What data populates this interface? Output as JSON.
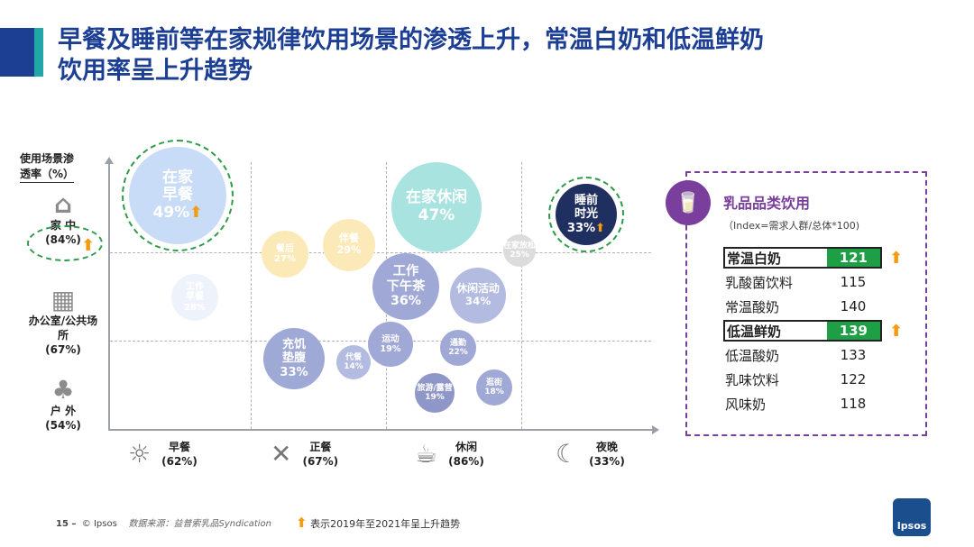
{
  "title_line1": "早餐及睡前等在家规律饮用场景的渗透上升，常温白奶和低温鲜奶",
  "title_line2": "饮用率呈上升趋势",
  "chart_data": {
    "type": "scatter",
    "title": "早餐及睡前等在家规律饮用场景的渗透上升，常温白奶和低温鲜奶饮用率呈上升趋势",
    "ylabel_line1": "使用场景渗",
    "ylabel_line2": "透率（%）",
    "y_categories": [
      {
        "icon": "house-icon",
        "name": "家 中",
        "value": "(84%)",
        "trend": "up"
      },
      {
        "icon": "office-icon",
        "name": "办公室/公共场",
        "name2": "所",
        "value": "(67%)"
      },
      {
        "icon": "tree-icon",
        "name": "户 外",
        "value": "(54%)"
      }
    ],
    "x_categories": [
      {
        "icon": "sun-icon",
        "name": "早餐",
        "value": "(62%)"
      },
      {
        "icon": "fork-knife-icon",
        "name": "正餐",
        "value": "(67%)"
      },
      {
        "icon": "coffee-icon",
        "name": "休闲",
        "value": "(86%)"
      },
      {
        "icon": "moon-icon",
        "name": "夜晚",
        "value": "(33%)"
      }
    ],
    "bubbles": [
      {
        "name": "在家早餐",
        "label1": "在家",
        "label2": "早餐",
        "value": 49,
        "pct": "49%",
        "location": "家中",
        "time": "早餐",
        "trend": "up",
        "highlight": true,
        "color": "#c9dcf7"
      },
      {
        "name": "工作早餐",
        "label1": "工作",
        "label2": "早餐",
        "value": 28,
        "pct": "28%",
        "location": "办公室/公共场所",
        "time": "早餐",
        "color": "#eef3fb"
      },
      {
        "name": "餐后",
        "label1": "餐后",
        "label2": "",
        "value": 27,
        "pct": "27%",
        "location": "家中",
        "time": "正餐",
        "color": "#fbe9b7"
      },
      {
        "name": "伴餐",
        "label1": "伴餐",
        "label2": "",
        "value": 29,
        "pct": "29%",
        "location": "家中",
        "time": "正餐",
        "color": "#fbe9b7"
      },
      {
        "name": "充饥垫腹",
        "label1": "充饥",
        "label2": "垫腹",
        "value": 33,
        "pct": "33%",
        "location": "户外",
        "time": "正餐",
        "color": "#9fa9d6"
      },
      {
        "name": "代餐",
        "label1": "代餐",
        "label2": "",
        "value": 14,
        "pct": "14%",
        "location": "户外",
        "time": "正餐",
        "color": "#b3bbe0"
      },
      {
        "name": "在家休闲",
        "label1": "在家休闲",
        "label2": "",
        "value": 47,
        "pct": "47%",
        "location": "家中",
        "time": "休闲",
        "color": "#a8e3e0"
      },
      {
        "name": "工作下午茶",
        "label1": "工作",
        "label2": "下午茶",
        "value": 36,
        "pct": "36%",
        "location": "办公室/公共场所",
        "time": "休闲",
        "color": "#a0a9d6"
      },
      {
        "name": "休闲活动",
        "label1": "休闲活动",
        "label2": "",
        "value": 34,
        "pct": "34%",
        "location": "办公室/公共场所",
        "time": "休闲",
        "color": "#b3bbe0"
      },
      {
        "name": "运动",
        "label1": "运动",
        "label2": "",
        "value": 19,
        "pct": "19%",
        "location": "户外",
        "time": "休闲",
        "color": "#a0a9d6"
      },
      {
        "name": "通勤",
        "label1": "通勤",
        "label2": "",
        "value": 22,
        "pct": "22%",
        "location": "户外",
        "time": "休闲",
        "color": "#a0a9d6"
      },
      {
        "name": "旅游/露营",
        "label1": "旅游/露营",
        "label2": "",
        "value": 19,
        "pct": "19%",
        "location": "户外",
        "time": "休闲",
        "color": "#8e97c8"
      },
      {
        "name": "逛街",
        "label1": "逛街",
        "label2": "",
        "value": 18,
        "pct": "18%",
        "location": "户外",
        "time": "休闲",
        "color": "#a0a9d6"
      },
      {
        "name": "在家放松",
        "label1": "在家放松",
        "label2": "",
        "value": 25,
        "pct": "25%",
        "location": "家中",
        "time": "夜晚",
        "color": "#dcdcdc"
      },
      {
        "name": "睡前时光",
        "label1": "睡前",
        "label2": "时光",
        "value": 33,
        "pct": "33%",
        "location": "家中",
        "time": "夜晚",
        "trend": "up",
        "highlight": true,
        "color": "#1f2f5f"
      }
    ]
  },
  "panel": {
    "title": "乳品品类饮用",
    "subtitle": "（Index=需求人群/总体*100)",
    "icon": "milk-icon",
    "rows": [
      {
        "name": "常温白奶",
        "value": "121",
        "highlight": true,
        "trend": "up"
      },
      {
        "name": "乳酸菌饮料",
        "value": "115"
      },
      {
        "name": "常温酸奶",
        "value": "140"
      },
      {
        "name": "低温鲜奶",
        "value": "139",
        "highlight": true,
        "trend": "up"
      },
      {
        "name": "低温酸奶",
        "value": "133"
      },
      {
        "name": "乳味饮料",
        "value": "122"
      },
      {
        "name": "风味奶",
        "value": "118"
      }
    ]
  },
  "footer": {
    "page": "15 –",
    "copyright": "© Ipsos",
    "source": "数据来源：益普索乳品Syndication"
  },
  "legend": {
    "text": "表示2019年至2021年呈上升趋势"
  },
  "logo": {
    "text": "Ipsos"
  },
  "colors": {
    "title": "#1c3f94",
    "accent_teal": "#22a7a9",
    "ring_green": "#2c9b4a",
    "trend_orange": "#f39c12",
    "panel_purple": "#7a3e9d",
    "highlight_green": "#1e9f45"
  }
}
